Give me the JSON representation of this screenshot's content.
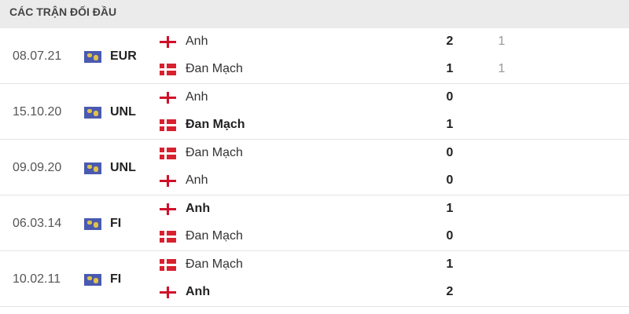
{
  "header": {
    "title": "CÁC TRẬN ĐỐI ĐẦU"
  },
  "colors": {
    "england_red": "#d0102a",
    "denmark_red": "#d8202f",
    "competition_icon": "#4a5ab0"
  },
  "matches": [
    {
      "date": "08.07.21",
      "competition": "EUR",
      "icon": "world-map-icon",
      "home": {
        "name": "Anh",
        "flag": "england",
        "score": "2",
        "half": "1",
        "bold": false
      },
      "away": {
        "name": "Đan Mạch",
        "flag": "denmark",
        "score": "1",
        "half": "1",
        "bold": false
      }
    },
    {
      "date": "15.10.20",
      "competition": "UNL",
      "icon": "world-map-icon",
      "home": {
        "name": "Anh",
        "flag": "england",
        "score": "0",
        "bold": false
      },
      "away": {
        "name": "Đan Mạch",
        "flag": "denmark",
        "score": "1",
        "bold": true
      }
    },
    {
      "date": "09.09.20",
      "competition": "UNL",
      "icon": "world-map-icon",
      "home": {
        "name": "Đan Mạch",
        "flag": "denmark",
        "score": "0",
        "bold": false
      },
      "away": {
        "name": "Anh",
        "flag": "england",
        "score": "0",
        "bold": false
      }
    },
    {
      "date": "06.03.14",
      "competition": "FI",
      "icon": "world-map-icon",
      "home": {
        "name": "Anh",
        "flag": "england",
        "score": "1",
        "bold": true
      },
      "away": {
        "name": "Đan Mạch",
        "flag": "denmark",
        "score": "0",
        "bold": false
      }
    },
    {
      "date": "10.02.11",
      "competition": "FI",
      "icon": "world-map-icon",
      "home": {
        "name": "Đan Mạch",
        "flag": "denmark",
        "score": "1",
        "bold": false
      },
      "away": {
        "name": "Anh",
        "flag": "england",
        "score": "2",
        "bold": true
      }
    }
  ]
}
